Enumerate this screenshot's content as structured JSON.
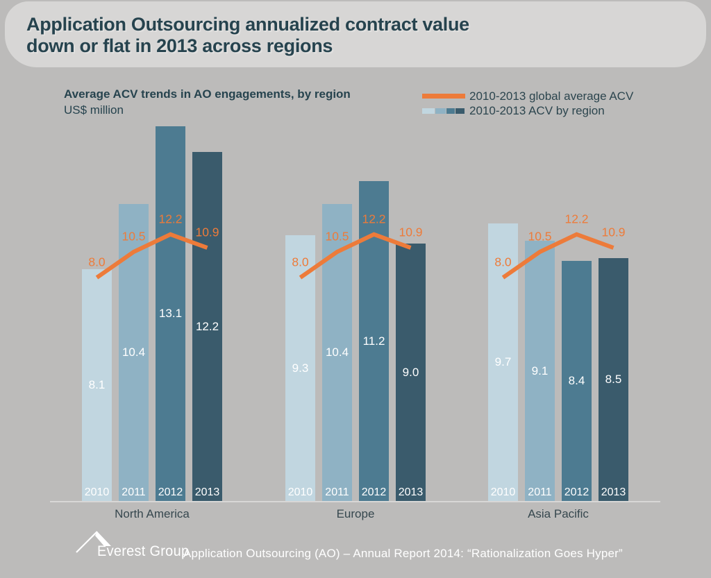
{
  "page": {
    "title_line1": "Application Outsourcing annualized contract value",
    "title_line2": "down or flat in 2013 across regions"
  },
  "chart": {
    "title": "Average ACV trends in AO engagements, by region",
    "unit": "US$ million",
    "legend": [
      {
        "label": "2010-2013 global average ACV",
        "swatch": "orange-line"
      },
      {
        "label": "2010-2013 ACV by region",
        "swatch": "region-bar-gradient"
      }
    ]
  },
  "chart_data": {
    "type": "bar",
    "title": "Average ACV trends in AO engagements, by region",
    "ylabel": "US$ million",
    "grid": false,
    "legend_position": "top-right",
    "categories": [
      "2010",
      "2011",
      "2012",
      "2013"
    ],
    "groups": [
      {
        "region": "North America",
        "values": [
          8.1,
          10.4,
          13.1,
          12.2
        ]
      },
      {
        "region": "Europe",
        "values": [
          9.3,
          10.4,
          11.2,
          9.0
        ]
      },
      {
        "region": "Asia Pacific",
        "values": [
          9.7,
          9.1,
          8.4,
          8.5
        ]
      }
    ],
    "line_series": {
      "name": "2010-2013 global average ACV",
      "values": [
        8.0,
        10.5,
        12.2,
        10.9
      ]
    },
    "bar_colors": [
      "#c1d6e0",
      "#8fb2c4",
      "#4d7b91",
      "#3a5b6c"
    ],
    "line_color": "#ed7b3a"
  },
  "footer": {
    "logo_text": "Everest Group",
    "report_text": "Application Outsourcing (AO) – Annual Report 2014: “Rationalization Goes Hyper”"
  },
  "colors": {
    "page_bg": "#bcbbba",
    "banner_bg": "#d7d6d5",
    "title_text": "#26434e",
    "axis_line": "#d8d7d6",
    "value_label": "#ffffff",
    "region_label": "#36474e",
    "legend_text": "#2c454e"
  }
}
